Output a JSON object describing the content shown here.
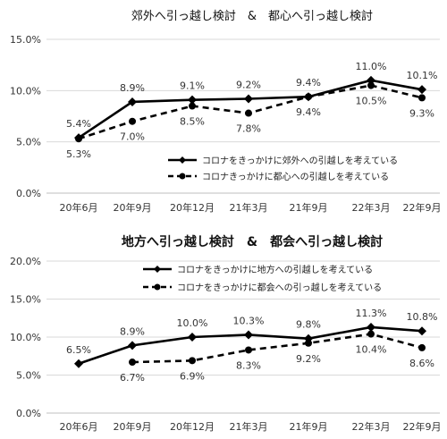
{
  "chart_data": [
    {
      "type": "line",
      "title": "郊外へ引っ越し検討　&　都心へ引っ越し検討",
      "title_bold": false,
      "categories": [
        "20年6月",
        "20年9月",
        "20年12月",
        "21年3月",
        "21年9月",
        "22年3月",
        "22年9月"
      ],
      "ylim": [
        0,
        15
      ],
      "yticks": [
        "0.0%",
        "5.0%",
        "10.0%",
        "15.0%"
      ],
      "yticks_values": [
        0,
        5,
        10,
        15
      ],
      "grid": true,
      "legend_position": "bottom-right",
      "series": [
        {
          "name": "コロナをきっかけに郊外への引越しを考えている",
          "style": "solid",
          "marker": "diamond",
          "values": [
            5.4,
            8.9,
            9.1,
            9.2,
            9.4,
            11.0,
            10.1
          ],
          "labels": [
            "5.4%",
            "8.9%",
            "9.1%",
            "9.2%",
            "9.4%",
            "11.0%",
            "10.1%"
          ],
          "label_side": [
            "above",
            "above",
            "above",
            "above",
            "above",
            "above",
            "above"
          ]
        },
        {
          "name": "コロナきっかけに都心への引越しを考えている",
          "style": "dashed",
          "marker": "circle",
          "values": [
            5.3,
            7.0,
            8.5,
            7.8,
            9.4,
            10.5,
            9.3
          ],
          "labels": [
            "5.3%",
            "7.0%",
            "8.5%",
            "7.8%",
            "9.4%",
            "10.5%",
            "9.3%"
          ],
          "label_side": [
            "below",
            "below",
            "below",
            "below",
            "below",
            "below",
            "below"
          ]
        }
      ]
    },
    {
      "type": "line",
      "title": "地方へ引っ越し検討　&　都会へ引っ越し検討",
      "title_bold": true,
      "categories": [
        "20年6月",
        "20年9月",
        "20年12月",
        "21年3月",
        "21年9月",
        "22年3月",
        "22年9月"
      ],
      "ylim": [
        0,
        20
      ],
      "yticks": [
        "0.0%",
        "5.0%",
        "10.0%",
        "15.0%",
        "20.0%"
      ],
      "yticks_values": [
        0,
        5,
        10,
        15,
        20
      ],
      "grid": true,
      "legend_position": "top-right",
      "series": [
        {
          "name": "コロナをきっかけに地方への引越しを考えている",
          "style": "solid",
          "marker": "diamond",
          "values": [
            6.5,
            8.9,
            10.0,
            10.3,
            9.8,
            11.3,
            10.8
          ],
          "labels": [
            "6.5%",
            "8.9%",
            "10.0%",
            "10.3%",
            "9.8%",
            "11.3%",
            "10.8%"
          ],
          "label_side": [
            "above",
            "above",
            "above",
            "above",
            "above",
            "above",
            "above"
          ]
        },
        {
          "name": "コロナをきっかけに都会への引っ越しを考えている",
          "style": "dashed",
          "marker": "circle",
          "values": [
            null,
            6.7,
            6.9,
            8.3,
            9.2,
            10.4,
            8.6
          ],
          "labels": [
            null,
            "6.7%",
            "6.9%",
            "8.3%",
            "9.2%",
            "10.4%",
            "8.6%"
          ],
          "label_side": [
            null,
            "below",
            "below",
            "below",
            "below",
            "below",
            "below"
          ]
        }
      ]
    }
  ]
}
